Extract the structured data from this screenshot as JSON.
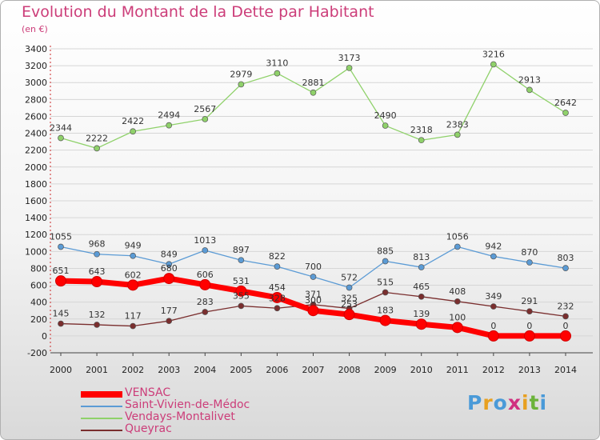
{
  "title": "Evolution du Montant de la Dette par Habitant",
  "subtitle": "(en €)",
  "logo": [
    "P",
    "r",
    "o",
    "x",
    "i",
    "t",
    "i"
  ],
  "logo_colors": [
    "#4a9ad8",
    "#e8a020",
    "#4a9ad8",
    "#d03080",
    "#e8a020",
    "#6bb33a",
    "#4a9ad8"
  ],
  "chart_data": {
    "type": "line",
    "title": "Evolution du Montant de la Dette par Habitant",
    "ylabel": "(en €)",
    "xlabel": "",
    "ylim": [
      -200,
      3400
    ],
    "yticks": [
      -200,
      0,
      200,
      400,
      600,
      800,
      1000,
      1200,
      1400,
      1600,
      1800,
      2000,
      2200,
      2400,
      2600,
      2800,
      3000,
      3200,
      3400
    ],
    "categories": [
      "2000",
      "2001",
      "2002",
      "2003",
      "2004",
      "2005",
      "2006",
      "2007",
      "2008",
      "2009",
      "2010",
      "2011",
      "2012",
      "2013",
      "2014"
    ],
    "series": [
      {
        "name": "VENSAC",
        "color": "#ff0000",
        "values": [
          651,
          643,
          602,
          680,
          606,
          531,
          454,
          300,
          253,
          183,
          139,
          100,
          0,
          0,
          0
        ]
      },
      {
        "name": "Saint-Vivien-de-Médoc",
        "color": "#5b9bd5",
        "values": [
          1055,
          968,
          949,
          849,
          1013,
          897,
          822,
          700,
          572,
          885,
          813,
          1056,
          942,
          870,
          803
        ]
      },
      {
        "name": "Vendays-Montalivet",
        "color": "#8fd16a",
        "values": [
          2344,
          2222,
          2422,
          2494,
          2567,
          2979,
          3110,
          2881,
          3173,
          2490,
          2318,
          2383,
          3216,
          2913,
          2642
        ]
      },
      {
        "name": "Queyrac",
        "color": "#7a2e2e",
        "values": [
          145,
          132,
          117,
          177,
          283,
          355,
          328,
          371,
          325,
          515,
          465,
          408,
          349,
          291,
          232
        ]
      }
    ]
  }
}
